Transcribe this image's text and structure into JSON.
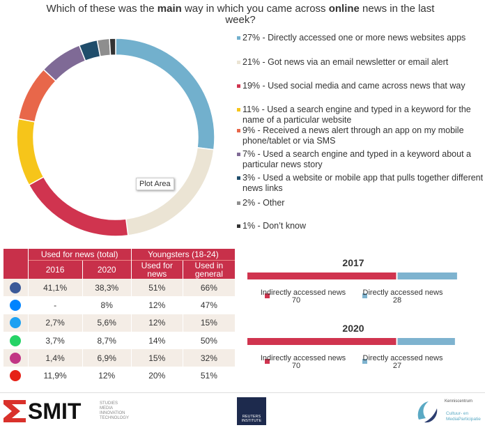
{
  "chart_data": [
    {
      "type": "donut",
      "title": [
        "Which of these was the ",
        "main",
        " way in which you came across ",
        "online",
        " news in the last week?"
      ],
      "categories": [
        "27% - Directly accessed one or more news websites apps",
        "21% - Got news via an email newsletter or email alert",
        "19% - Used social media and came across news that way",
        "11% - Used a search engine and typed in a keyword for the name of a particular website",
        "9% - Received a news alert through an app on my mobile phone/tablet or via SMS",
        "7% - Used a search engine and typed in a keyword about a particular news story",
        "3% - Used a website or mobile app that pulls together different news links",
        "2% - Other",
        "1% - Don’t know"
      ],
      "values": [
        27,
        21,
        19,
        11,
        9,
        7,
        3,
        2,
        1
      ],
      "colors": [
        "#72b0cd",
        "#ebe4d4",
        "#d0344f",
        "#f6c51a",
        "#e8674a",
        "#7f6a96",
        "#1f4d6b",
        "#8e8e8e",
        "#333333"
      ],
      "annotation": "Plot Area"
    },
    {
      "type": "stacked-bar",
      "title": "2017",
      "series": [
        {
          "name": "Indirectly accessed news",
          "color": "#d0344f",
          "values": [
            70
          ]
        },
        {
          "name": "Directly accessed news",
          "color": "#7eb3cf",
          "values": [
            28
          ]
        }
      ]
    },
    {
      "type": "stacked-bar",
      "title": "2020",
      "series": [
        {
          "name": "Indirectly accessed news",
          "color": "#d0344f",
          "values": [
            70
          ]
        },
        {
          "name": "Directly accessed news",
          "color": "#7eb3cf",
          "values": [
            27
          ]
        }
      ]
    }
  ],
  "table": {
    "groups": [
      "Used for news (total)",
      "Youngsters (18-24)"
    ],
    "columns": [
      "2016",
      "2020",
      "Used for news",
      "Used in general"
    ],
    "rows": [
      [
        "41,1%",
        "38,3%",
        "51%",
        "66%"
      ],
      [
        "-",
        "8%",
        "12%",
        "47%"
      ],
      [
        "2,7%",
        "5,6%",
        "12%",
        "15%"
      ],
      [
        "3,7%",
        "8,7%",
        "14%",
        "50%"
      ],
      [
        "1,4%",
        "6,9%",
        "15%",
        "32%"
      ],
      [
        "11,9%",
        "12%",
        "20%",
        "51%"
      ]
    ]
  },
  "footer": {
    "smit": "SMIT",
    "smit_sub": [
      "STUDIES",
      "MEDIA",
      "INNOVATION",
      "TECHNOLOGY"
    ],
    "reuters": "REUTERS INSTITUTE",
    "kc_title": "Kenniscentrum",
    "kc_name": [
      "Cultuur- en",
      "MediaParticipatie"
    ]
  }
}
